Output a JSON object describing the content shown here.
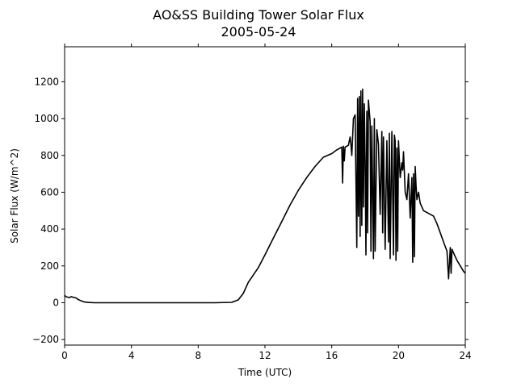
{
  "chart_data": {
    "type": "line",
    "title": "AO&SS Building Tower Solar Flux",
    "subtitle": "2005-05-24",
    "xlabel": "Time (UTC)",
    "ylabel": "Solar Flux (W/m^2)",
    "xlim": [
      0,
      24
    ],
    "ylim": [
      -230,
      1390
    ],
    "xticks": [
      0,
      4,
      8,
      12,
      16,
      20,
      24
    ],
    "yticks": [
      -200,
      0,
      200,
      400,
      600,
      800,
      1000,
      1200
    ],
    "grid": false,
    "line_color": "#000000",
    "series": [
      {
        "x": [
          0.0,
          0.1,
          0.2,
          0.3,
          0.4,
          0.5,
          0.6,
          0.7,
          0.8,
          1.0,
          1.2,
          1.5,
          1.8,
          2.0,
          3.0,
          5.0,
          7.0,
          9.0,
          10.0,
          10.4,
          10.7,
          11.0,
          11.3,
          11.6,
          12.0,
          12.5,
          13.0,
          13.5,
          14.0,
          14.5,
          15.0,
          15.5,
          16.0,
          16.3,
          16.6,
          16.65,
          16.7,
          16.75,
          16.8,
          16.9,
          17.0,
          17.1,
          17.15,
          17.2,
          17.3,
          17.4,
          17.5,
          17.55,
          17.6,
          17.65,
          17.7,
          17.75,
          17.8,
          17.85,
          17.9,
          17.95,
          18.0,
          18.05,
          18.1,
          18.15,
          18.2,
          18.3,
          18.35,
          18.4,
          18.5,
          18.55,
          18.6,
          18.7,
          18.8,
          18.9,
          19.0,
          19.05,
          19.1,
          19.2,
          19.3,
          19.4,
          19.45,
          19.5,
          19.6,
          19.7,
          19.75,
          19.8,
          19.85,
          19.9,
          19.95,
          20.0,
          20.1,
          20.2,
          20.25,
          20.3,
          20.4,
          20.5,
          20.6,
          20.7,
          20.8,
          20.85,
          20.9,
          20.95,
          21.0,
          21.05,
          21.1,
          21.2,
          21.3,
          21.5,
          21.7,
          21.9,
          22.1,
          22.3,
          22.5,
          22.7,
          22.9,
          23.0,
          23.1,
          23.15,
          23.2,
          23.3,
          23.4,
          23.5,
          23.7,
          23.9,
          24.0
        ],
        "values": [
          40,
          32,
          30,
          28,
          33,
          30,
          28,
          25,
          18,
          10,
          4,
          1,
          0,
          0,
          0,
          0,
          0,
          0,
          2,
          15,
          50,
          110,
          150,
          190,
          260,
          350,
          440,
          530,
          610,
          680,
          740,
          790,
          810,
          830,
          845,
          650,
          850,
          770,
          845,
          850,
          855,
          900,
          860,
          800,
          1000,
          1020,
          300,
          1110,
          470,
          1120,
          360,
          1150,
          420,
          1160,
          520,
          1080,
          760,
          260,
          1040,
          380,
          1100,
          980,
          280,
          960,
          240,
          1000,
          280,
          940,
          860,
          480,
          930,
          380,
          900,
          290,
          880,
          330,
          920,
          240,
          930,
          260,
          910,
          880,
          230,
          840,
          280,
          880,
          680,
          760,
          720,
          820,
          600,
          560,
          700,
          460,
          680,
          220,
          700,
          250,
          740,
          640,
          560,
          600,
          540,
          500,
          490,
          480,
          470,
          430,
          380,
          330,
          280,
          130,
          300,
          160,
          290,
          270,
          250,
          230,
          200,
          170,
          160
        ]
      }
    ]
  }
}
